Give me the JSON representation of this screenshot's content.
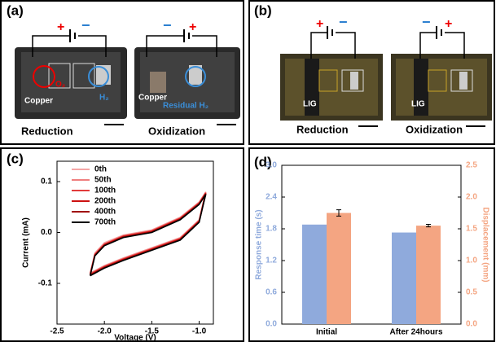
{
  "panels": [
    {
      "label": "(a)",
      "texts": [
        "+",
        "−",
        "Copper",
        "O₂",
        "H₂",
        "Reduction",
        "−",
        "+",
        "Copper",
        "Residual H₂",
        "Oxidization"
      ]
    },
    {
      "label": "(b)",
      "texts": [
        "+",
        "−",
        "LIG",
        "Reduction",
        "−",
        "+",
        "LIG",
        "Oxidization"
      ]
    }
  ],
  "chart_data": [
    {
      "type": "line",
      "label": "(c)",
      "x_label": "Voltage (V)",
      "y_label": "Current (mA)",
      "x": [
        -2.15,
        -2.1,
        -2.0,
        -1.8,
        -1.5,
        -1.2,
        -1.0,
        -0.93,
        -0.95,
        -1.0,
        -1.2,
        -1.5,
        -1.8,
        -2.0,
        -2.15
      ],
      "series": [
        {
          "name": "0th",
          "color": "#f4a6a6",
          "values": [
            -0.08,
            -0.04,
            -0.02,
            -0.005,
            0.005,
            0.03,
            0.06,
            0.08,
            0.065,
            0.025,
            -0.01,
            -0.03,
            -0.05,
            -0.065,
            -0.08
          ]
        },
        {
          "name": "50th",
          "color": "#ef7f7f",
          "values": [
            -0.08,
            -0.042,
            -0.022,
            -0.006,
            0.004,
            0.029,
            0.059,
            0.079,
            0.064,
            0.024,
            -0.011,
            -0.031,
            -0.051,
            -0.066,
            -0.08
          ]
        },
        {
          "name": "100th",
          "color": "#e23a3a",
          "values": [
            -0.082,
            -0.043,
            -0.023,
            -0.007,
            0.003,
            0.028,
            0.058,
            0.078,
            0.063,
            0.023,
            -0.012,
            -0.032,
            -0.052,
            -0.067,
            -0.082
          ]
        },
        {
          "name": "200th",
          "color": "#cc1111",
          "values": [
            -0.083,
            -0.044,
            -0.024,
            -0.008,
            0.002,
            0.027,
            0.057,
            0.077,
            0.062,
            0.022,
            -0.013,
            -0.033,
            -0.053,
            -0.068,
            -0.083
          ]
        },
        {
          "name": "400th",
          "color": "#a00000",
          "values": [
            -0.084,
            -0.045,
            -0.025,
            -0.009,
            0.001,
            0.026,
            0.056,
            0.076,
            0.061,
            0.021,
            -0.014,
            -0.034,
            -0.054,
            -0.069,
            -0.084
          ]
        },
        {
          "name": "700th",
          "color": "#000000",
          "values": [
            -0.085,
            -0.046,
            -0.026,
            -0.01,
            0.0,
            0.025,
            0.055,
            0.075,
            0.06,
            0.02,
            -0.015,
            -0.035,
            -0.055,
            -0.07,
            -0.085
          ]
        }
      ],
      "xlim": [
        -2.5,
        -0.85
      ],
      "xticks": [
        -2.5,
        {
          "value": -2.0,
          "label": "-2.0"
        },
        -1.5,
        {
          "value": -1.0,
          "label": "-1.0"
        }
      ],
      "ylim": [
        -0.18,
        0.14
      ],
      "yticks": [
        -0.1,
        {
          "value": 0.0,
          "label": "0.0"
        },
        0.1
      ]
    },
    {
      "type": "bar",
      "label": "(d)",
      "categories": [
        "Initial",
        "After 24hours"
      ],
      "series": [
        {
          "name": "Response time (s)",
          "color": "#8faadc",
          "values": [
            1.88,
            1.73
          ]
        },
        {
          "name": "Displacement (mm)",
          "color": "#f4a582",
          "axis": "y2",
          "values": [
            1.75,
            1.55
          ],
          "errors": [
            0.05,
            0.02
          ]
        }
      ],
      "ylim": [
        0,
        3.0
      ],
      "yticks": [
        {
          "value": 0.0,
          "label": "0.0"
        },
        0.6,
        1.2,
        1.8,
        2.4,
        {
          "value": 3.0,
          "label": "3.0"
        }
      ],
      "y2lim": [
        0,
        2.5
      ],
      "y2ticks": [
        {
          "value": 0.0,
          "label": "0.0"
        },
        0.5,
        {
          "value": 1.0,
          "label": "1.0"
        },
        1.5,
        {
          "value": 2.0,
          "label": "2.0"
        },
        2.5
      ]
    }
  ]
}
